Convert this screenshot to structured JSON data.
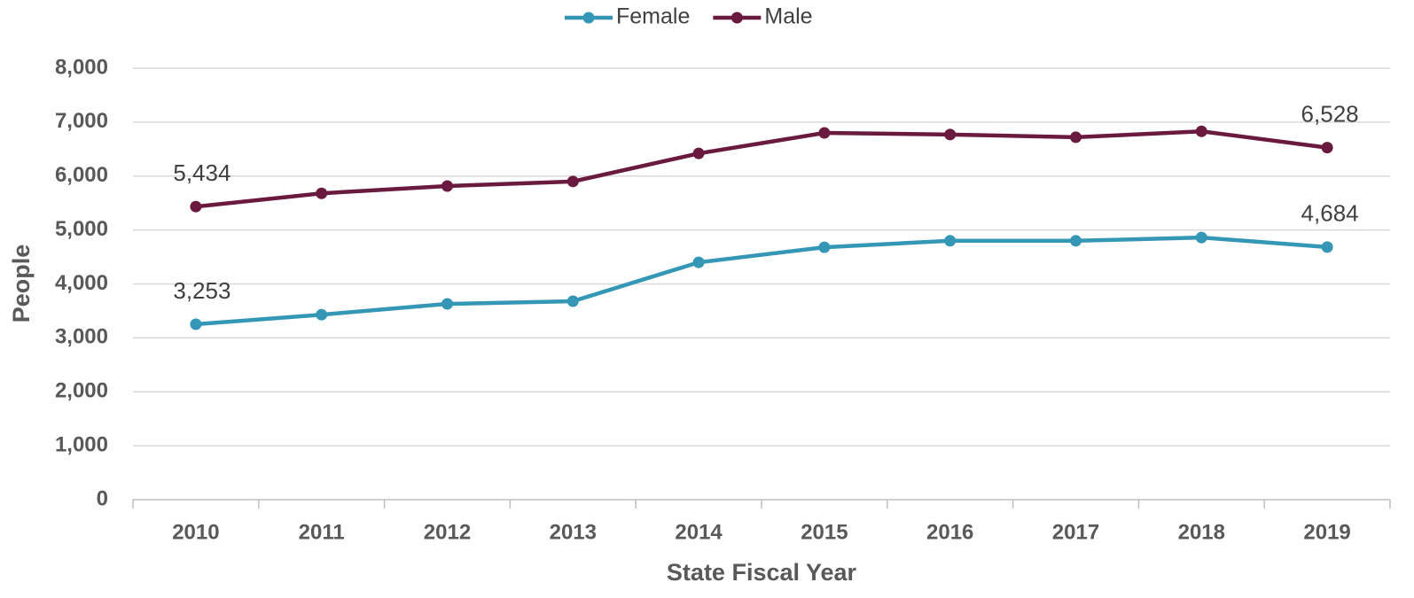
{
  "chart_data": {
    "type": "line",
    "x_label": "State Fiscal Year",
    "y_label": "People",
    "categories": [
      "2010",
      "2011",
      "2012",
      "2013",
      "2014",
      "2015",
      "2016",
      "2017",
      "2018",
      "2019"
    ],
    "series": [
      {
        "name": "Female",
        "color": "#3497b5",
        "values": [
          3253,
          3430,
          3630,
          3680,
          4400,
          4680,
          4800,
          4800,
          4860,
          4684
        ],
        "value_labels": [
          "3,253",
          null,
          null,
          null,
          null,
          null,
          null,
          null,
          null,
          "4,684"
        ]
      },
      {
        "name": "Male",
        "color": "#6b1a3f",
        "values": [
          5434,
          5680,
          5815,
          5900,
          6420,
          6800,
          6770,
          6720,
          6830,
          6528
        ],
        "value_labels": [
          "5,434",
          null,
          null,
          null,
          null,
          null,
          null,
          null,
          null,
          "6,528"
        ]
      }
    ],
    "ylim": [
      0,
      8000
    ],
    "yticks": [
      0,
      {
        "value": 1000,
        "label": "1,000"
      },
      {
        "value": 2000,
        "label": "2,000"
      },
      {
        "value": 3000,
        "label": "3,000"
      },
      {
        "value": 4000,
        "label": "4,000"
      },
      {
        "value": 5000,
        "label": "5,000"
      },
      {
        "value": 6000,
        "label": "6,000"
      },
      {
        "value": 7000,
        "label": "7,000"
      },
      {
        "value": 8000,
        "label": "8,000"
      }
    ],
    "grid": true,
    "legend": "top"
  }
}
